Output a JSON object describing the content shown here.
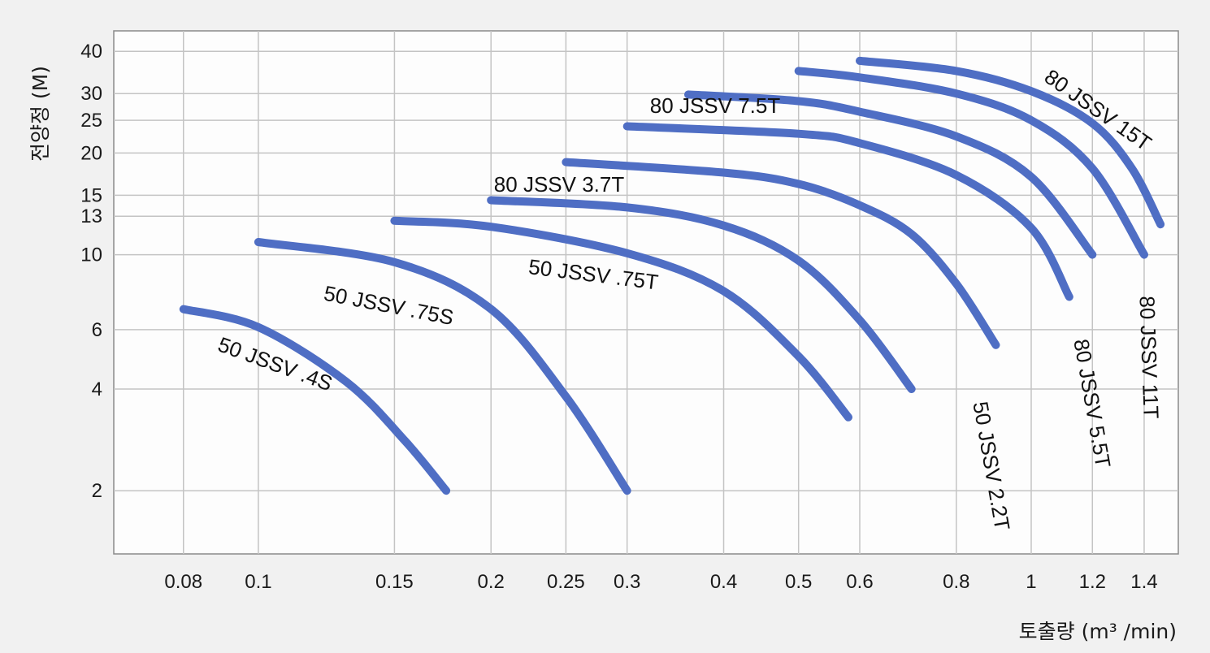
{
  "chart_data": {
    "type": "line",
    "title": "",
    "xlabel": "토출량 (m³ /min)",
    "ylabel": "전양정 (M)",
    "x_scale": "log",
    "y_scale": "log",
    "xlim": [
      0.065,
      1.55
    ],
    "ylim": [
      1.3,
      46
    ],
    "grid": true,
    "legend": "none",
    "line_color": "#4f6ec4",
    "x_ticks": [
      {
        "value": 0.08,
        "label": "0.08"
      },
      {
        "value": 0.1,
        "label": "0.1"
      },
      {
        "value": 0.15,
        "label": "0.15"
      },
      {
        "value": 0.2,
        "label": "0.2"
      },
      {
        "value": 0.25,
        "label": "0.25"
      },
      {
        "value": 0.3,
        "label": "0.3"
      },
      {
        "value": 0.4,
        "label": "0.4"
      },
      {
        "value": 0.5,
        "label": "0.5"
      },
      {
        "value": 0.6,
        "label": "0.6"
      },
      {
        "value": 0.8,
        "label": "0.8"
      },
      {
        "value": 1,
        "label": "1"
      },
      {
        "value": 1.2,
        "label": "1.2"
      },
      {
        "value": 1.4,
        "label": "1.4"
      }
    ],
    "y_ticks": [
      {
        "value": 2,
        "label": "2"
      },
      {
        "value": 4,
        "label": "4"
      },
      {
        "value": 6,
        "label": "6"
      },
      {
        "value": 10,
        "label": "10"
      },
      {
        "value": 13,
        "label": "13"
      },
      {
        "value": 15,
        "label": "15"
      },
      {
        "value": 20,
        "label": "20"
      },
      {
        "value": 25,
        "label": "25"
      },
      {
        "value": 30,
        "label": "30"
      },
      {
        "value": 40,
        "label": "40"
      }
    ],
    "series": [
      {
        "name": "50 JSSV .4S",
        "x": [
          0.08,
          0.1,
          0.13,
          0.155,
          0.175
        ],
        "y": [
          6.9,
          6.1,
          4.2,
          2.8,
          2.0
        ]
      },
      {
        "name": "50 JSSV .75S",
        "x": [
          0.1,
          0.15,
          0.2,
          0.25,
          0.3
        ],
        "y": [
          10.9,
          9.5,
          6.9,
          3.8,
          2.0
        ]
      },
      {
        "name": "50 JSSV .75T",
        "x": [
          0.15,
          0.2,
          0.3,
          0.4,
          0.5,
          0.58
        ],
        "y": [
          12.6,
          12.1,
          10.1,
          7.8,
          5.0,
          3.3
        ]
      },
      {
        "name": "50 JSSV 2.2T",
        "x": [
          0.2,
          0.3,
          0.4,
          0.5,
          0.6,
          0.7
        ],
        "y": [
          14.5,
          13.8,
          12.2,
          9.6,
          6.4,
          4.0
        ]
      },
      {
        "name": "80 JSSV 3.7T",
        "x": [
          0.25,
          0.4,
          0.5,
          0.6,
          0.7,
          0.8,
          0.9
        ],
        "y": [
          18.8,
          17.5,
          16.2,
          14.0,
          11.5,
          8.2,
          5.4
        ]
      },
      {
        "name": "80 JSSV 5.5T",
        "x": [
          0.3,
          0.5,
          0.6,
          0.8,
          1.0,
          1.12
        ],
        "y": [
          24.0,
          22.8,
          21.4,
          17.2,
          12.0,
          7.5
        ]
      },
      {
        "name": "80 JSSV 7.5T",
        "x": [
          0.36,
          0.5,
          0.6,
          0.8,
          1.0,
          1.2
        ],
        "y": [
          29.8,
          28.5,
          26.5,
          22.4,
          17.0,
          10.0
        ]
      },
      {
        "name": "80 JSSV 11T",
        "x": [
          0.5,
          0.6,
          0.8,
          1.0,
          1.2,
          1.4
        ],
        "y": [
          35.0,
          33.5,
          30.0,
          25.0,
          18.0,
          10.0
        ]
      },
      {
        "name": "80 JSSV 15T",
        "x": [
          0.6,
          0.8,
          1.0,
          1.2,
          1.35,
          1.47
        ],
        "y": [
          37.5,
          35.0,
          30.5,
          24.5,
          18.0,
          12.3
        ]
      }
    ]
  }
}
